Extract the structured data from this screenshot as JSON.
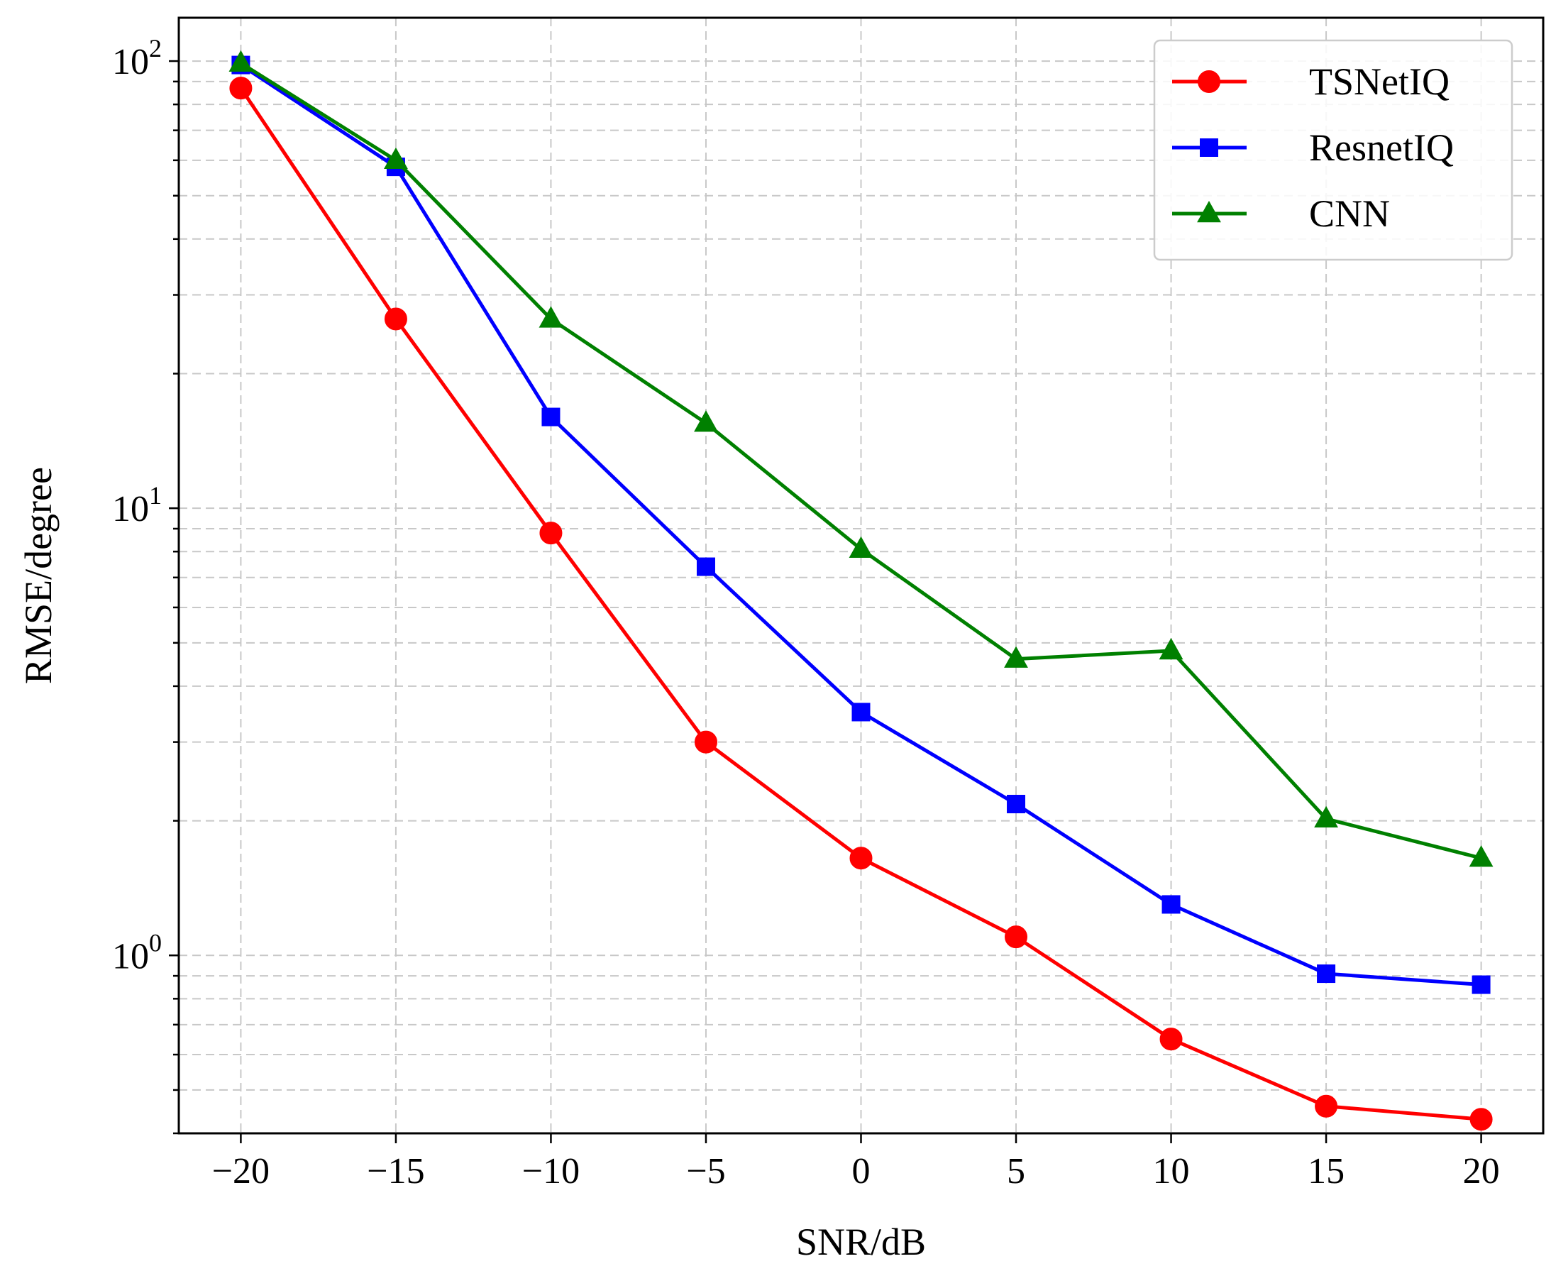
{
  "chart_data": {
    "type": "line",
    "title": "",
    "xlabel": "SNR/dB",
    "ylabel": "RMSE/degree",
    "yscale": "log",
    "x": [
      -20,
      -15,
      -10,
      -5,
      0,
      5,
      10,
      15,
      20
    ],
    "xlim": [
      -22,
      22
    ],
    "ylim": [
      0.4,
      125
    ],
    "xticks": [
      "−20",
      "−15",
      "−10",
      "−5",
      "0",
      "5",
      "10",
      "15",
      "20"
    ],
    "yticks": [
      {
        "base": "10",
        "exp": "0",
        "value": 1
      },
      {
        "base": "10",
        "exp": "1",
        "value": 10
      },
      {
        "base": "10",
        "exp": "2",
        "value": 100
      }
    ],
    "grid": true,
    "legend_position": "top-right",
    "series": [
      {
        "name": "TSNetIQ",
        "color": "#ff0000",
        "marker": "circle",
        "values": [
          87,
          26.5,
          8.8,
          3.0,
          1.65,
          1.1,
          0.65,
          0.46,
          0.43
        ]
      },
      {
        "name": "ResnetIQ",
        "color": "#0000ff",
        "marker": "square",
        "values": [
          98,
          58,
          16,
          7.4,
          3.5,
          2.18,
          1.3,
          0.91,
          0.86
        ]
      },
      {
        "name": "CNN",
        "color": "#008000",
        "marker": "triangle",
        "values": [
          99,
          60,
          26.5,
          15.5,
          8.1,
          4.6,
          4.8,
          2.02,
          1.65
        ]
      }
    ]
  }
}
